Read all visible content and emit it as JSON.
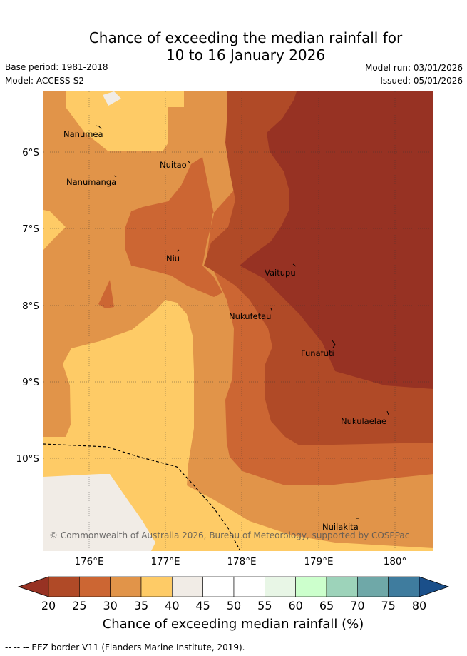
{
  "header": {
    "title_line1": "Chance of exceeding the median rainfall for",
    "title_line2": "10 to 16 January 2026",
    "base_period": "Base period: 1981-2018",
    "model": "Model: ACCESS-S2",
    "model_run": "Model run: 03/01/2026",
    "issued": "Issued: 05/01/2026"
  },
  "map": {
    "lon_ticks": [
      "176°E",
      "177°E",
      "178°E",
      "179°E",
      "180°"
    ],
    "lat_ticks": [
      "6°S",
      "7°S",
      "8°S",
      "9°S",
      "10°S"
    ],
    "places": [
      {
        "name": "Nanumea"
      },
      {
        "name": "Nuitao"
      },
      {
        "name": "Nanumanga"
      },
      {
        "name": "Niu"
      },
      {
        "name": "Vaitupu"
      },
      {
        "name": "Nukufetau"
      },
      {
        "name": "Funafuti"
      },
      {
        "name": "Nukulaelae"
      },
      {
        "name": "Nuilakita"
      }
    ],
    "copyright": "© Commonwealth of Australia 2026, Bureau of Meteorology, supported by COSPPac",
    "colors": {
      "c20_25": "#b04a27",
      "c25_30": "#cc6633",
      "c30_35": "#e19449",
      "c35_40": "#fecb66",
      "c40_45": "#f1ece6",
      "c15_20": "#973223"
    }
  },
  "colorbar": {
    "ticks": [
      "20",
      "25",
      "30",
      "35",
      "40",
      "45",
      "50",
      "55",
      "60",
      "65",
      "70",
      "75",
      "80"
    ],
    "label": "Chance of exceeding median rainfall (%)",
    "colors": [
      "#b04a27",
      "#cc6633",
      "#e19449",
      "#fecb66",
      "#f1ece6",
      "#ffffff",
      "#ffffff",
      "#e8f6e6",
      "#ccffcc",
      "#9dd3ba",
      "#6fa8a8",
      "#3f7c9e"
    ],
    "under_color": "#973223",
    "over_color": "#1a4f8a"
  },
  "footer": {
    "eez_note": "-- -- -- EEZ border V11 (Flanders Marine Institute, 2019)."
  }
}
